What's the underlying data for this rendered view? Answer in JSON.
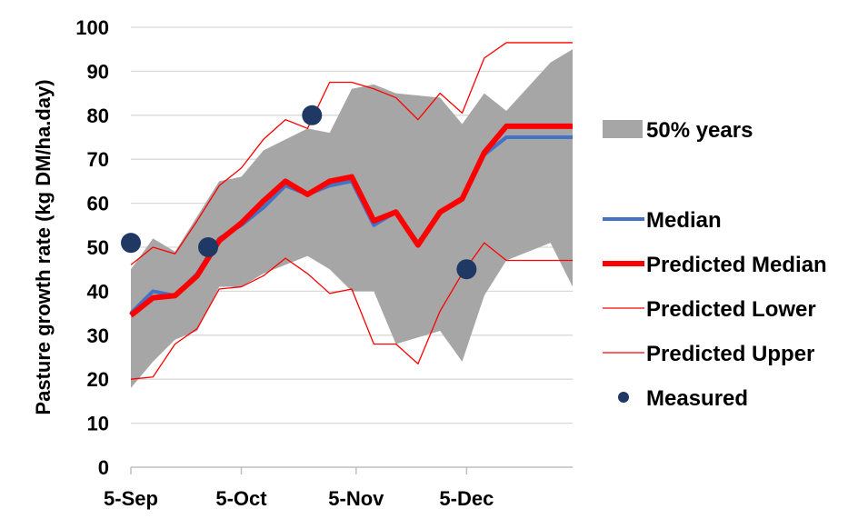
{
  "chart_data": {
    "type": "line",
    "title": "",
    "xlabel": "",
    "ylabel": "Pasture growth rate (kg DM/ha.day)",
    "ylim": [
      0,
      100
    ],
    "yticks": [
      0,
      10,
      20,
      30,
      40,
      50,
      60,
      70,
      80,
      90,
      100
    ],
    "x_tick_labels": [
      {
        "label": "5-Sep",
        "index": 0
      },
      {
        "label": "5-Oct",
        "index": 5
      },
      {
        "label": "5-Nov",
        "index": 10.2
      },
      {
        "label": "5-Dec",
        "index": 15.2
      }
    ],
    "x_max_index": 20,
    "band": {
      "name": "50% years",
      "color": "#a6a6a6",
      "upper": [
        45,
        52,
        49,
        57,
        65,
        66,
        72,
        77,
        76,
        86,
        87,
        85,
        84,
        78,
        85,
        81,
        92,
        95
      ],
      "lower": [
        18,
        24,
        29,
        31,
        41,
        41,
        44,
        48,
        45,
        40,
        40,
        28,
        31,
        24,
        39,
        47,
        51,
        41
      ],
      "upper_x": [
        0,
        1,
        2,
        3,
        4,
        5,
        6,
        8,
        9,
        10,
        11,
        12,
        14,
        15,
        16,
        17,
        19,
        20
      ],
      "lower_x": [
        0,
        1,
        2,
        3,
        4,
        5,
        6,
        8,
        9,
        10,
        11,
        12,
        14,
        15,
        16,
        17,
        19,
        20
      ]
    },
    "series": [
      {
        "name": "Median",
        "color": "#4472c4",
        "x": [
          0,
          1,
          2,
          3,
          4,
          5,
          6,
          7,
          8,
          9,
          10,
          11,
          12,
          13,
          14,
          15,
          16,
          17,
          18,
          19,
          20
        ],
        "values": [
          35,
          40,
          39,
          44,
          52,
          55,
          59,
          64,
          62,
          64,
          65,
          55,
          58,
          51,
          58,
          61,
          71,
          75,
          75,
          75,
          75
        ]
      },
      {
        "name": "Predicted Median",
        "color": "#ff0000",
        "x": [
          0,
          1,
          2,
          3,
          4,
          5,
          6,
          7,
          8,
          9,
          10,
          11,
          12,
          13,
          14,
          15,
          16,
          17,
          18,
          19,
          20
        ],
        "values": [
          34.5,
          38.5,
          39,
          43.5,
          51.5,
          55.5,
          60.5,
          65,
          62,
          65,
          66,
          56,
          58,
          50.5,
          58,
          61,
          71.5,
          77.5,
          77.5,
          77.5,
          77.5
        ]
      },
      {
        "name": "Predicted Lower",
        "color": "#ff0000",
        "x": [
          0,
          1,
          2,
          3,
          4,
          5,
          6,
          7,
          8,
          9,
          10,
          11,
          12,
          13,
          14,
          15,
          16,
          17,
          18,
          19,
          20
        ],
        "values": [
          20,
          20.5,
          28,
          31.5,
          40.5,
          41,
          43.5,
          47.5,
          44,
          39.5,
          40.5,
          28,
          28,
          23.5,
          35.5,
          44,
          51,
          47,
          47,
          47,
          47
        ]
      },
      {
        "name": "Predicted Upper",
        "color": "#ff0000",
        "x": [
          0,
          1,
          2,
          3,
          4,
          5,
          6,
          7,
          8,
          9,
          10,
          11,
          12,
          13,
          14,
          15,
          16,
          17,
          18,
          19,
          20
        ],
        "values": [
          46,
          50,
          48.5,
          56,
          64,
          68,
          74.5,
          79,
          77,
          87.5,
          87.5,
          86,
          84,
          79,
          85,
          80.5,
          93,
          96.5,
          96.5,
          96.5,
          96.5
        ]
      }
    ],
    "measured": {
      "name": "Measured",
      "color": "#1f3864",
      "points": [
        {
          "x": 0,
          "y": 51
        },
        {
          "x": 3.5,
          "y": 50
        },
        {
          "x": 8.2,
          "y": 80
        },
        {
          "x": 15.2,
          "y": 45
        }
      ]
    },
    "legend_position": "right"
  }
}
